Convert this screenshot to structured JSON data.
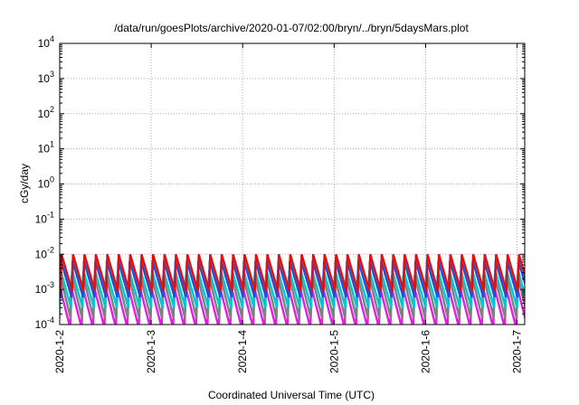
{
  "chart_data": {
    "type": "line",
    "title": "/data/run/goesPlots/archive/2020-01-07/02:00/bryn/../bryn/5daysMars.plot",
    "xlabel": "Coordinated Universal Time (UTC)",
    "ylabel": "cGy/day",
    "x_range": [
      "2020-01-02T00:00",
      "2020-01-07T02:00"
    ],
    "ylim": [
      0.0001,
      10000
    ],
    "y_scale": "log",
    "grid": true,
    "x_ticks": [
      {
        "date": "2020-01-02T00:00",
        "label": "2020-1-2"
      },
      {
        "date": "2020-01-03T00:00",
        "label": "2020-1-3"
      },
      {
        "date": "2020-01-04T00:00",
        "label": "2020-1-4"
      },
      {
        "date": "2020-01-05T00:00",
        "label": "2020-1-5"
      },
      {
        "date": "2020-01-06T00:00",
        "label": "2020-1-6"
      },
      {
        "date": "2020-01-07T00:00",
        "label": "2020-1-7"
      }
    ],
    "y_ticks": [
      {
        "value": 0.0001,
        "base": "10",
        "exp": "-4"
      },
      {
        "value": 0.001,
        "base": "10",
        "exp": "-3"
      },
      {
        "value": 0.01,
        "base": "10",
        "exp": "-2"
      },
      {
        "value": 0.1,
        "base": "10",
        "exp": "-1"
      },
      {
        "value": 1,
        "base": "10",
        "exp": "0"
      },
      {
        "value": 10,
        "base": "10",
        "exp": "1"
      },
      {
        "value": 100,
        "base": "10",
        "exp": "2"
      },
      {
        "value": 1000,
        "base": "10",
        "exp": "3"
      },
      {
        "value": 10000,
        "base": "10",
        "exp": "4"
      }
    ],
    "colors": {
      "red": "#e01010",
      "blue": "#1f4fd8",
      "cyan": "#00c8d0",
      "gray": "#808080",
      "magenta": "#e020e0"
    },
    "cycles_per_day": 8,
    "series": [
      {
        "color": "magenta",
        "high": 0.0012,
        "low": 8e-05
      },
      {
        "color": "gray",
        "high": 0.0025,
        "low": 0.00015
      },
      {
        "color": "cyan",
        "high": 0.0035,
        "low": 0.0003
      },
      {
        "color": "blue",
        "high": 0.0065,
        "low": 0.0006
      },
      {
        "color": "red",
        "high": 0.01,
        "low": 0.0009
      }
    ]
  }
}
